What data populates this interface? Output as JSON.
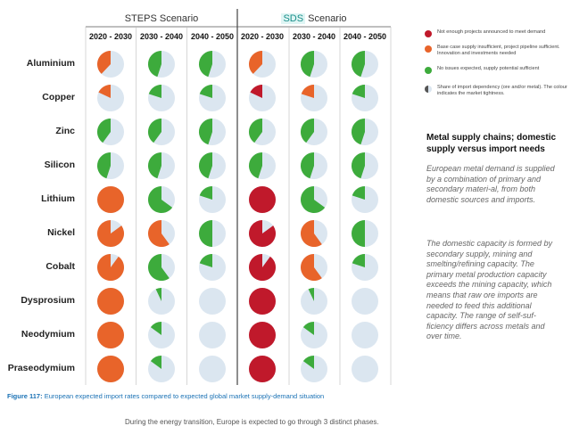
{
  "chart_data": {
    "type": "pie",
    "scenarios": [
      {
        "name_plain": "STEPS",
        "name_highlight": "",
        "suffix": " Scenario"
      },
      {
        "name_plain": "",
        "name_highlight": "SDS",
        "suffix": " Scenario"
      }
    ],
    "periods": [
      "2020 - 2030",
      "2030 - 2040",
      "2040 - 2050",
      "2020 - 2030",
      "2030 - 2040",
      "2040 - 2050"
    ],
    "metals": [
      "Aluminium",
      "Copper",
      "Zinc",
      "Silicon",
      "Lithium",
      "Nickel",
      "Cobalt",
      "Dysprosium",
      "Neodymium",
      "Praseodymium"
    ],
    "status_colors": {
      "red": "#c0192b",
      "orange": "#e8642a",
      "green": "#3dab3c",
      "none": "#dbe6f0"
    },
    "cells": [
      [
        {
          "status": "orange",
          "share": 0.38
        },
        {
          "status": "green",
          "share": 0.45
        },
        {
          "status": "green",
          "share": 0.45
        },
        {
          "status": "orange",
          "share": 0.38
        },
        {
          "status": "green",
          "share": 0.45
        },
        {
          "status": "green",
          "share": 0.45
        }
      ],
      [
        {
          "status": "orange",
          "share": 0.18
        },
        {
          "status": "green",
          "share": 0.2
        },
        {
          "status": "green",
          "share": 0.2
        },
        {
          "status": "red",
          "share": 0.18
        },
        {
          "status": "orange",
          "share": 0.2
        },
        {
          "status": "green",
          "share": 0.2
        }
      ],
      [
        {
          "status": "green",
          "share": 0.4
        },
        {
          "status": "green",
          "share": 0.4
        },
        {
          "status": "green",
          "share": 0.45
        },
        {
          "status": "green",
          "share": 0.4
        },
        {
          "status": "green",
          "share": 0.4
        },
        {
          "status": "green",
          "share": 0.45
        }
      ],
      [
        {
          "status": "green",
          "share": 0.45
        },
        {
          "status": "green",
          "share": 0.45
        },
        {
          "status": "green",
          "share": 0.45
        },
        {
          "status": "green",
          "share": 0.45
        },
        {
          "status": "green",
          "share": 0.45
        },
        {
          "status": "green",
          "share": 0.45
        }
      ],
      [
        {
          "status": "orange",
          "share": 1.0
        },
        {
          "status": "green",
          "share": 0.65
        },
        {
          "status": "green",
          "share": 0.2
        },
        {
          "status": "red",
          "share": 1.0
        },
        {
          "status": "green",
          "share": 0.65
        },
        {
          "status": "green",
          "share": 0.2
        }
      ],
      [
        {
          "status": "orange",
          "share": 0.85
        },
        {
          "status": "orange",
          "share": 0.6
        },
        {
          "status": "green",
          "share": 0.5
        },
        {
          "status": "red",
          "share": 0.85
        },
        {
          "status": "orange",
          "share": 0.6
        },
        {
          "status": "green",
          "share": 0.5
        }
      ],
      [
        {
          "status": "orange",
          "share": 0.9
        },
        {
          "status": "green",
          "share": 0.6
        },
        {
          "status": "green",
          "share": 0.2
        },
        {
          "status": "red",
          "share": 0.9
        },
        {
          "status": "orange",
          "share": 0.6
        },
        {
          "status": "green",
          "share": 0.2
        }
      ],
      [
        {
          "status": "orange",
          "share": 1.0
        },
        {
          "status": "green",
          "share": 0.07
        },
        {
          "status": "none",
          "share": 0.0
        },
        {
          "status": "red",
          "share": 1.0
        },
        {
          "status": "green",
          "share": 0.07
        },
        {
          "status": "none",
          "share": 0.0
        }
      ],
      [
        {
          "status": "orange",
          "share": 1.0
        },
        {
          "status": "green",
          "share": 0.15
        },
        {
          "status": "none",
          "share": 0.0
        },
        {
          "status": "red",
          "share": 1.0
        },
        {
          "status": "green",
          "share": 0.15
        },
        {
          "status": "none",
          "share": 0.0
        }
      ],
      [
        {
          "status": "orange",
          "share": 1.0
        },
        {
          "status": "green",
          "share": 0.15
        },
        {
          "status": "none",
          "share": 0.0
        },
        {
          "status": "red",
          "share": 1.0
        },
        {
          "status": "green",
          "share": 0.15
        },
        {
          "status": "none",
          "share": 0.0
        }
      ]
    ],
    "legend": [
      {
        "status": "red",
        "text": "Not enough projects announced to meet demand"
      },
      {
        "status": "orange",
        "text": "Base case supply insufficient, project pipeline sufficient. Innovation and investments needed"
      },
      {
        "status": "green",
        "text": "No issues expected, supply potential sufficient"
      },
      {
        "status": "share",
        "text": "Share of import dependency (ore and/or metal). The colour indicates the market tightness."
      }
    ]
  },
  "sidebar": {
    "title": "Metal supply chains; domestic supply versus import needs",
    "paragraphs": [
      "European metal demand is supplied by a combination of primary and secondary materi-al, from both domestic sources and imports.",
      "The domestic capacity is formed by secondary supply, mining and smelting/refining capacity. The primary metal production capacity exceeds the mining capacity, which means that raw ore imports are needed to feed this additional capacity. The range of self-suf-ficiency differs across metals and over time."
    ]
  },
  "caption": {
    "figure": "Figure 117:",
    "text": " European expected import rates compared to expected global market supply-demand situation"
  },
  "footer_text": "During the energy transition, Europe is expected to go through 3 distinct phases."
}
